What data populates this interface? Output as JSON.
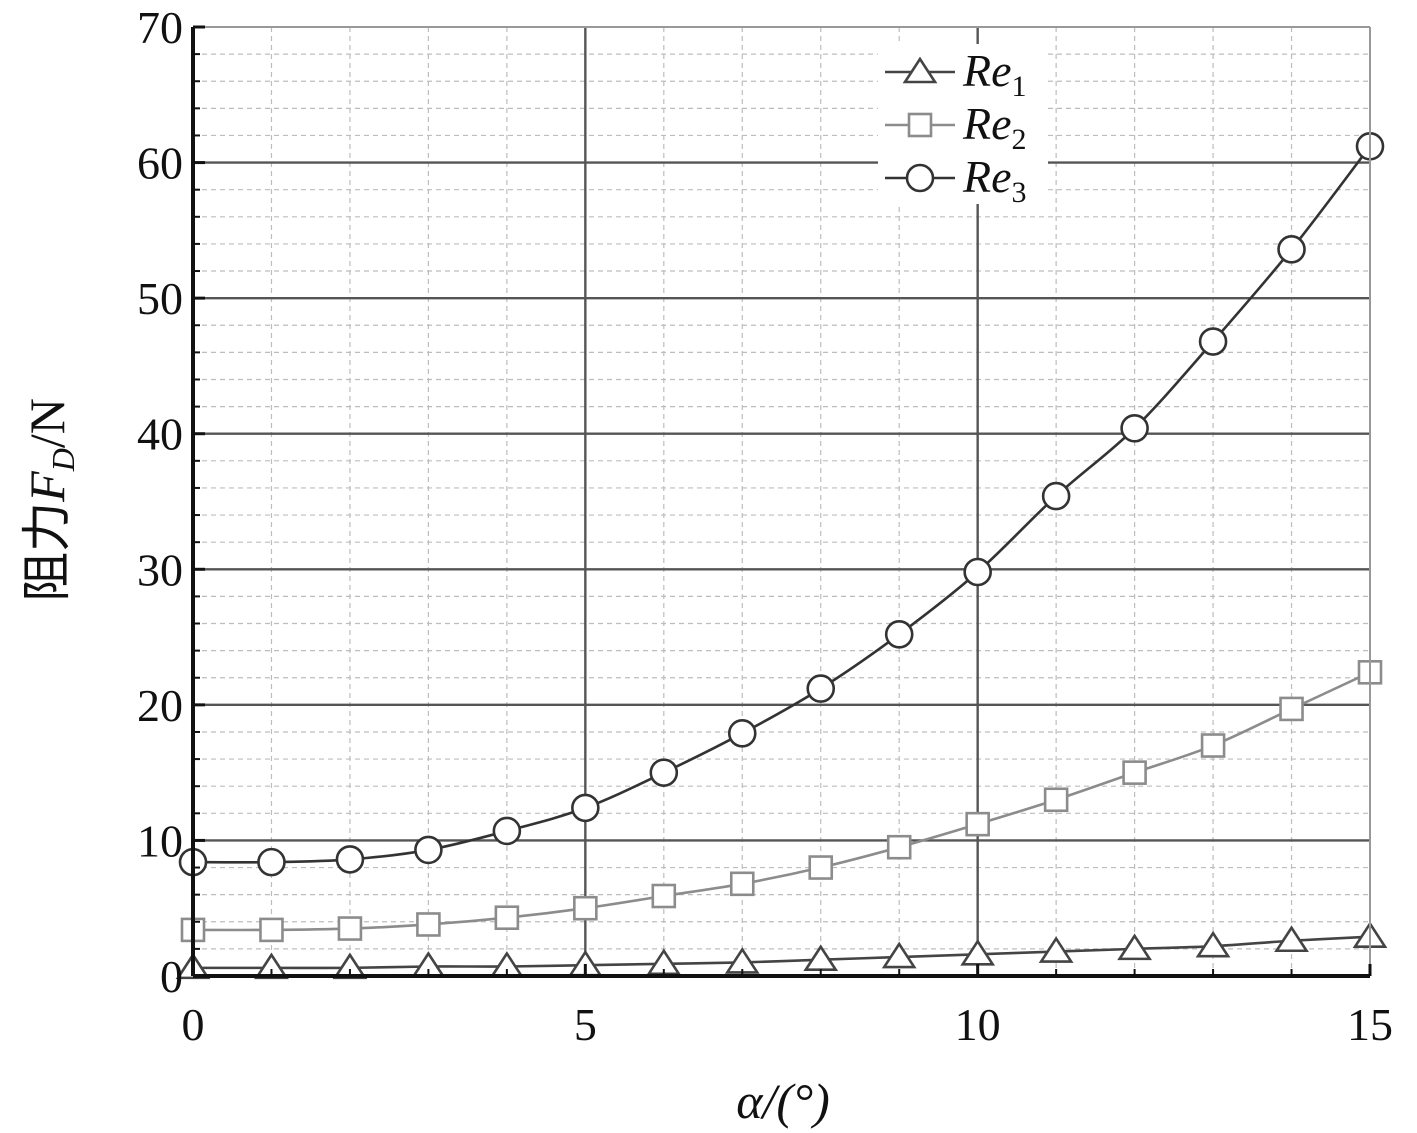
{
  "chart_data": {
    "type": "line",
    "xlabel": "α/(°)",
    "ylabel": "阻力F_D/N",
    "ylabel_parts": {
      "prefix": "阻力",
      "symbol": "F",
      "subscript": "D",
      "suffix": "/N"
    },
    "xlim": [
      0,
      15
    ],
    "ylim": [
      0,
      70
    ],
    "x_ticks": [
      "0",
      "5",
      "10",
      "15"
    ],
    "y_ticks": [
      "0",
      "10",
      "20",
      "30",
      "40",
      "50",
      "60",
      "70"
    ],
    "grid": true,
    "legend_position": "top-right",
    "x": [
      0,
      1,
      2,
      3,
      4,
      5,
      6,
      7,
      8,
      9,
      10,
      11,
      12,
      13,
      14,
      15
    ],
    "series": [
      {
        "name": "Re1",
        "name_parts": {
          "base": "Re",
          "sub": "1"
        },
        "marker": "triangle",
        "color": "#444444",
        "values": [
          0.6,
          0.6,
          0.6,
          0.7,
          0.7,
          0.8,
          0.9,
          1.0,
          1.2,
          1.4,
          1.6,
          1.8,
          2.0,
          2.2,
          2.6,
          2.9
        ]
      },
      {
        "name": "Re2",
        "name_parts": {
          "base": "Re",
          "sub": "2"
        },
        "marker": "square",
        "color": "#8c8c8c",
        "values": [
          3.4,
          3.4,
          3.5,
          3.8,
          4.3,
          5.0,
          5.9,
          6.8,
          8.0,
          9.5,
          11.2,
          13.0,
          15.0,
          17.0,
          19.7,
          22.4
        ]
      },
      {
        "name": "Re3",
        "name_parts": {
          "base": "Re",
          "sub": "3"
        },
        "marker": "circle",
        "color": "#333333",
        "values": [
          8.4,
          8.4,
          8.6,
          9.3,
          10.7,
          12.4,
          15.0,
          17.9,
          21.2,
          25.2,
          29.8,
          35.4,
          40.4,
          46.8,
          53.6,
          61.2
        ]
      }
    ]
  }
}
